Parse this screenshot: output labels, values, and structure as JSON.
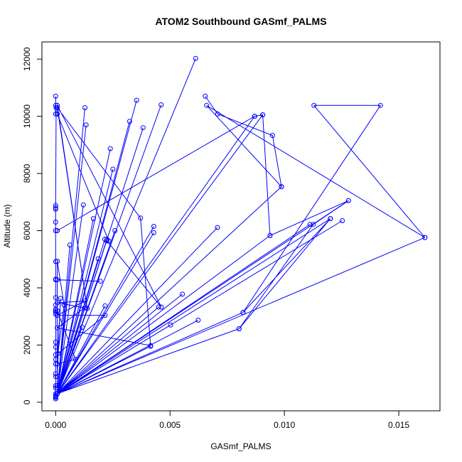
{
  "chart_data": {
    "type": "line",
    "title": "ATOM2 Southbound GASmf_PALMS",
    "xlabel": "GASmf_PALMS",
    "ylabel": "Altitude (m)",
    "xlim": [
      -0.0006,
      0.0168
    ],
    "ylim": [
      -300,
      12600
    ],
    "x_ticks": [
      0.0,
      0.005,
      0.01,
      0.015
    ],
    "x_tick_labels": [
      "0.000",
      "0.005",
      "0.010",
      "0.015"
    ],
    "y_ticks": [
      0,
      2000,
      4000,
      6000,
      8000,
      10000,
      12000
    ],
    "y_tick_labels": [
      "0",
      "2000",
      "4000",
      "6000",
      "8000",
      "10000",
      "12000"
    ],
    "series_color": "#0000ff",
    "series": [
      {
        "x": [
          0.0,
          0.0,
          0.0,
          2e-05,
          0.0,
          0.0,
          0.0,
          0.0,
          0.0,
          0.0,
          0.0,
          0.0,
          0.0,
          0.0,
          0.0,
          0.0,
          0.0,
          0.0,
          0.0,
          0.0,
          0.0,
          0.0,
          0.0,
          0.0,
          0.0,
          0.0,
          0.0,
          0.0,
          0.0,
          0.0,
          0.0,
          0.0
        ],
        "y": [
          10700,
          10380,
          10080,
          10300,
          6880,
          6750,
          6300,
          6000,
          4920,
          4280,
          3660,
          3400,
          3250,
          3150,
          3080,
          1930,
          1660,
          1500,
          1340,
          900,
          580,
          500,
          240,
          200,
          170,
          120,
          6800,
          4300,
          3200,
          2100,
          1000,
          300
        ]
      },
      {
        "x": [
          7e-05,
          0.00612,
          7e-05,
          0.00354,
          7e-05,
          0.00461,
          7e-05,
          0.00382,
          7e-05,
          0.00323,
          7e-05,
          0.00239,
          7e-05,
          0.00128,
          7e-05,
          0.00133,
          7e-05,
          0.00121,
          7e-05,
          0.00062,
          7e-05,
          0.00165,
          7e-05,
          0.00186,
          7e-05,
          0.00215,
          7e-05,
          0.00224,
          7e-05,
          0.00259,
          7e-05,
          0.00429,
          7e-05,
          0.00429,
          7e-05,
          0.00707,
          7e-05,
          0.00987,
          7e-05,
          0.0087,
          7e-05,
          0.00905,
          7e-05,
          0.01614,
          7e-05,
          0.0128,
          7e-05,
          0.01253,
          7e-05,
          0.01201,
          7e-05,
          0.01112,
          7e-05,
          0.00937,
          7e-05,
          0.00819,
          7e-05,
          0.00802,
          7e-05,
          0.00623,
          7e-05,
          0.00554,
          7e-05,
          0.00502,
          7e-05,
          0.0045,
          7e-05,
          0.00415,
          7e-05,
          0.0025,
          7e-05,
          0.00216,
          7e-05,
          0.00116,
          7e-05
        ],
        "y": [
          300,
          12020,
          300,
          10560,
          300,
          10400,
          300,
          9600,
          300,
          9820,
          300,
          8870,
          300,
          10300,
          300,
          9700,
          300,
          6900,
          300,
          5500,
          300,
          6420,
          300,
          5020,
          300,
          5700,
          300,
          5700,
          300,
          6000,
          300,
          6150,
          300,
          5930,
          300,
          6110,
          300,
          7540,
          300,
          10000,
          300,
          10050,
          300,
          5760,
          300,
          7050,
          300,
          6350,
          300,
          6420,
          300,
          6220,
          300,
          5830,
          300,
          3140,
          300,
          2570,
          300,
          2870,
          300,
          3780,
          300,
          2700,
          300,
          3330,
          300,
          1960,
          300,
          8150,
          300,
          3370,
          300,
          2620,
          300
        ]
      },
      {
        "x": [
          7e-05,
          0.00232,
          0.00224,
          0.00462,
          7e-05,
          0.00138,
          7e-05,
          0.00371,
          0.00415,
          7e-05,
          0.00126,
          7e-05,
          0.00128,
          7e-05,
          0.00216,
          0.0001,
          0.00037,
          7e-05,
          7e-05,
          0.00087,
          7e-05,
          0.00021,
          7e-05,
          7e-05,
          7e-05,
          7e-05,
          0.00195
        ],
        "y": [
          10080,
          5640,
          5640,
          3330,
          10380,
          3280,
          10300,
          6440,
          1980,
          2600,
          3300,
          3480,
          3540,
          3040,
          3040,
          1700,
          3400,
          4930,
          3200,
          1500,
          1340,
          3630,
          900,
          580,
          500,
          4280,
          4230
        ]
      },
      {
        "x": [
          0.00654,
          0.00708,
          0.00948,
          0.00987,
          0.0066,
          0.01614,
          0.01129,
          0.0142,
          0.00819,
          0.01201,
          0.00802,
          0.01126,
          0.0128,
          0.00937,
          0.00905,
          0.0087,
          7e-05
        ],
        "y": [
          10700,
          10080,
          9330,
          7540,
          10380,
          5760,
          10380,
          10380,
          3140,
          6420,
          2570,
          6220,
          7050,
          5830,
          10050,
          10000,
          6000
        ]
      }
    ]
  }
}
